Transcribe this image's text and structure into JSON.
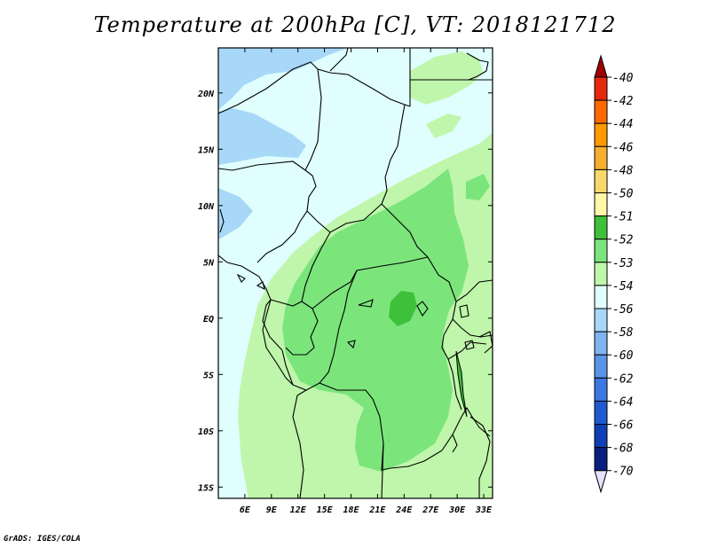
{
  "title": "Temperature at 200hPa [C], VT: 2018121712",
  "footer": "GrADS: IGES/COLA",
  "map": {
    "lon_range": [
      3,
      34
    ],
    "lat_range": [
      -16,
      24
    ],
    "lon_ticks": [
      "6E",
      "9E",
      "12E",
      "15E",
      "18E",
      "21E",
      "24E",
      "27E",
      "30E",
      "33E"
    ],
    "lat_ticks": [
      "20N",
      "15N",
      "10N",
      "5N",
      "EQ",
      "5S",
      "10S",
      "15S"
    ]
  },
  "colorbar": {
    "labels": [
      "-40",
      "-42",
      "-44",
      "-46",
      "-48",
      "-50",
      "-51",
      "-52",
      "-53",
      "-54",
      "-56",
      "-58",
      "-60",
      "-62",
      "-64",
      "-66",
      "-68",
      "-70"
    ],
    "colors": [
      "#a00000",
      "#e6280e",
      "#ff6a00",
      "#ff9900",
      "#f5b030",
      "#f6d86c",
      "#fff6a8",
      "#3fc03a",
      "#7be57c",
      "#bff6ab",
      "#e0fefe",
      "#a8d8f8",
      "#80b4f0",
      "#5a94e8",
      "#3c78e0",
      "#1f5ad0",
      "#0e3fb4",
      "#0a2080",
      "#e8e0ff"
    ]
  }
}
